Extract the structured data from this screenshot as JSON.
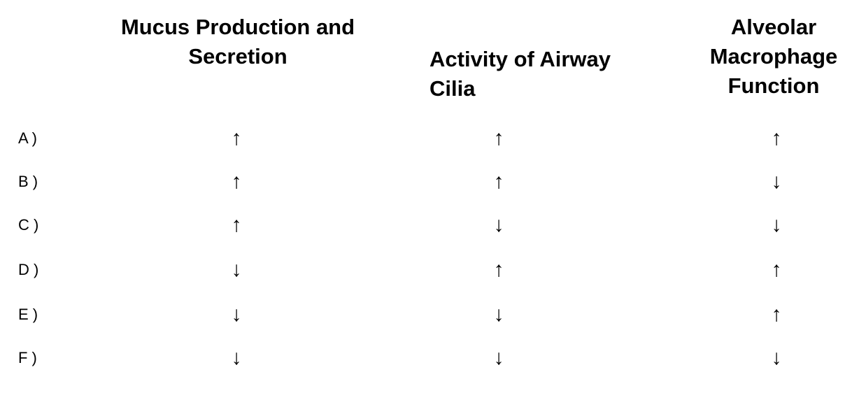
{
  "headers": [
    "Mucus Production and Secretion",
    "Activity of Airway Cilia",
    "Alveolar Macrophage Function"
  ],
  "rows": [
    {
      "label": "A )",
      "values": [
        "↑",
        "↑",
        "↑"
      ]
    },
    {
      "label": "B )",
      "values": [
        "↑",
        "↑",
        "↓"
      ]
    },
    {
      "label": "C )",
      "values": [
        "↑",
        "↓",
        "↓"
      ]
    },
    {
      "label": "D )",
      "values": [
        "↓",
        "↑",
        "↑"
      ]
    },
    {
      "label": "E )",
      "values": [
        "↓",
        "↓",
        "↑"
      ]
    },
    {
      "label": "F )",
      "values": [
        "↓",
        "↓",
        "↓"
      ]
    }
  ]
}
